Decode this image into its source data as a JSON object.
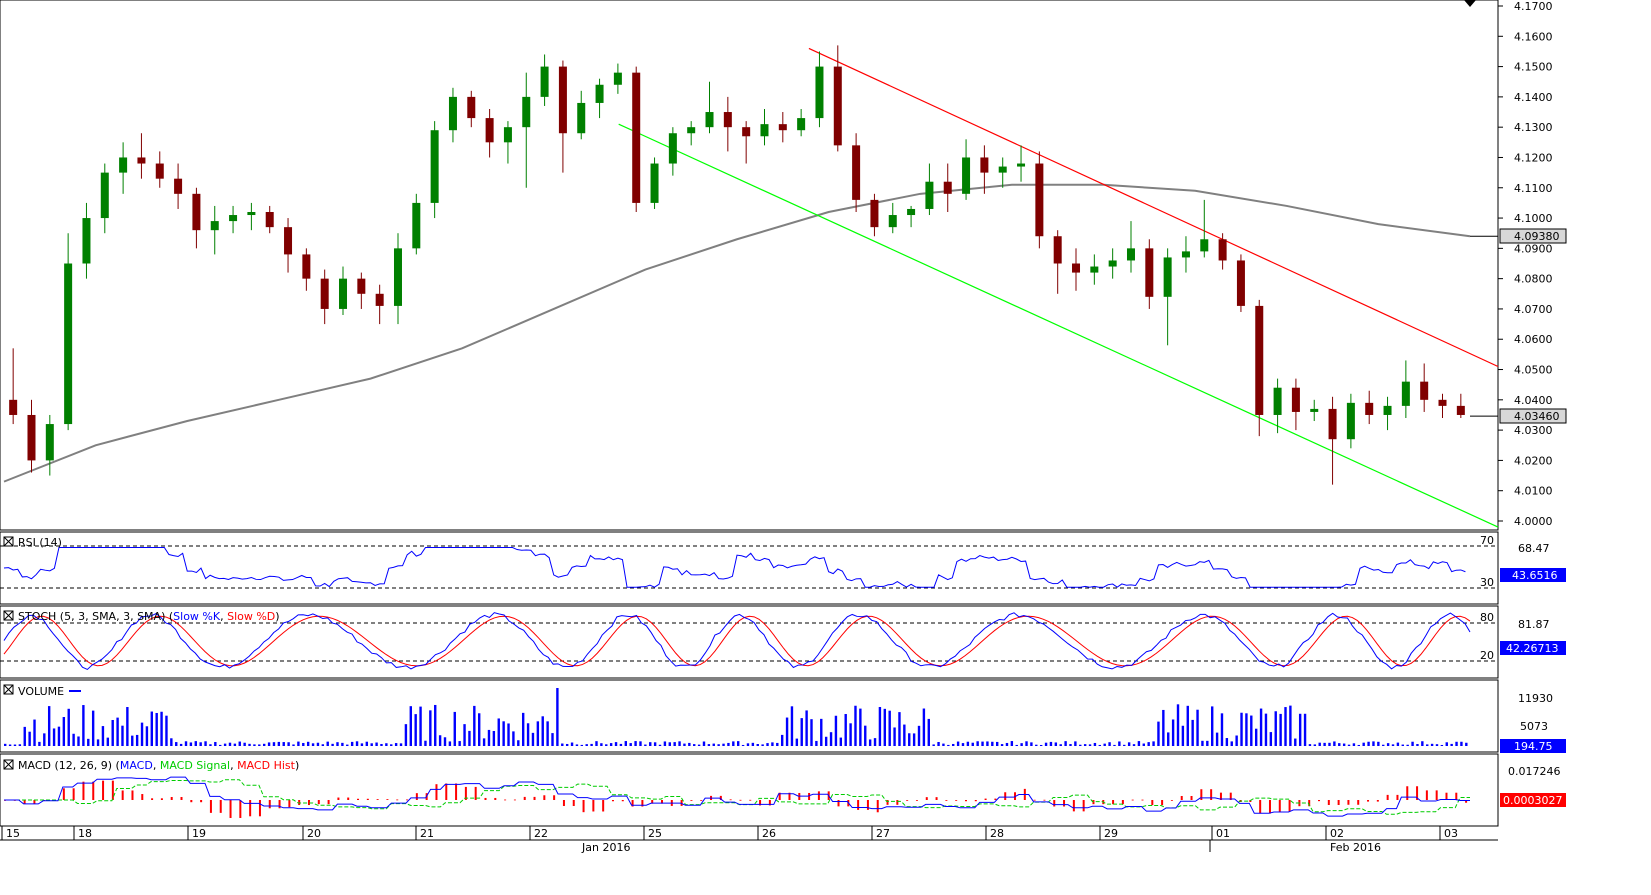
{
  "chart_data": {
    "type": "candlestick",
    "price_panel": {
      "ylim": [
        4.0,
        4.17
      ],
      "y_ticks": [
        "4.1700",
        "4.1600",
        "4.1500",
        "4.1400",
        "4.1300",
        "4.1200",
        "4.1100",
        "4.1000",
        "4.0900",
        "4.0800",
        "4.0700",
        "4.0600",
        "4.0500",
        "4.0400",
        "4.0300",
        "4.0200",
        "4.0100",
        "4.0000"
      ],
      "last_price_label": "4.03460",
      "ma_label": "4.09380",
      "candles_ohlc_approx": [
        [
          4.04,
          4.057,
          4.032,
          4.035
        ],
        [
          4.035,
          4.04,
          4.016,
          4.02
        ],
        [
          4.02,
          4.035,
          4.015,
          4.032
        ],
        [
          4.032,
          4.095,
          4.03,
          4.085
        ],
        [
          4.085,
          4.105,
          4.08,
          4.1
        ],
        [
          4.1,
          4.118,
          4.095,
          4.115
        ],
        [
          4.115,
          4.125,
          4.108,
          4.12
        ],
        [
          4.12,
          4.128,
          4.113,
          4.118
        ],
        [
          4.118,
          4.122,
          4.11,
          4.113
        ],
        [
          4.113,
          4.118,
          4.103,
          4.108
        ],
        [
          4.108,
          4.11,
          4.09,
          4.096
        ],
        [
          4.096,
          4.104,
          4.088,
          4.099
        ],
        [
          4.099,
          4.104,
          4.095,
          4.101
        ],
        [
          4.101,
          4.105,
          4.096,
          4.102
        ],
        [
          4.102,
          4.104,
          4.095,
          4.097
        ],
        [
          4.097,
          4.1,
          4.082,
          4.088
        ],
        [
          4.088,
          4.09,
          4.076,
          4.08
        ],
        [
          4.08,
          4.083,
          4.065,
          4.07
        ],
        [
          4.07,
          4.084,
          4.068,
          4.08
        ],
        [
          4.08,
          4.082,
          4.07,
          4.075
        ],
        [
          4.075,
          4.078,
          4.065,
          4.071
        ],
        [
          4.071,
          4.095,
          4.065,
          4.09
        ],
        [
          4.09,
          4.108,
          4.088,
          4.105
        ],
        [
          4.105,
          4.132,
          4.1,
          4.129
        ],
        [
          4.129,
          4.143,
          4.125,
          4.14
        ],
        [
          4.14,
          4.142,
          4.13,
          4.133
        ],
        [
          4.133,
          4.136,
          4.12,
          4.125
        ],
        [
          4.125,
          4.132,
          4.118,
          4.13
        ],
        [
          4.13,
          4.148,
          4.11,
          4.14
        ],
        [
          4.14,
          4.154,
          4.137,
          4.15
        ],
        [
          4.15,
          4.152,
          4.115,
          4.128
        ],
        [
          4.128,
          4.142,
          4.126,
          4.138
        ],
        [
          4.138,
          4.146,
          4.133,
          4.144
        ],
        [
          4.144,
          4.151,
          4.141,
          4.148
        ],
        [
          4.148,
          4.15,
          4.102,
          4.105
        ],
        [
          4.105,
          4.12,
          4.103,
          4.118
        ],
        [
          4.118,
          4.13,
          4.114,
          4.128
        ],
        [
          4.128,
          4.132,
          4.124,
          4.13
        ],
        [
          4.13,
          4.145,
          4.128,
          4.135
        ],
        [
          4.135,
          4.14,
          4.122,
          4.13
        ],
        [
          4.13,
          4.132,
          4.118,
          4.127
        ],
        [
          4.127,
          4.136,
          4.124,
          4.131
        ],
        [
          4.131,
          4.135,
          4.125,
          4.129
        ],
        [
          4.129,
          4.136,
          4.127,
          4.133
        ],
        [
          4.133,
          4.155,
          4.13,
          4.15
        ],
        [
          4.15,
          4.157,
          4.122,
          4.124
        ],
        [
          4.124,
          4.128,
          4.102,
          4.106
        ],
        [
          4.106,
          4.108,
          4.094,
          4.097
        ],
        [
          4.097,
          4.105,
          4.095,
          4.101
        ],
        [
          4.101,
          4.104,
          4.097,
          4.103
        ],
        [
          4.103,
          4.118,
          4.101,
          4.112
        ],
        [
          4.112,
          4.118,
          4.102,
          4.108
        ],
        [
          4.108,
          4.126,
          4.106,
          4.12
        ],
        [
          4.12,
          4.124,
          4.108,
          4.115
        ],
        [
          4.115,
          4.12,
          4.11,
          4.117
        ],
        [
          4.117,
          4.124,
          4.112,
          4.118
        ],
        [
          4.118,
          4.122,
          4.09,
          4.094
        ],
        [
          4.094,
          4.096,
          4.075,
          4.085
        ],
        [
          4.085,
          4.09,
          4.076,
          4.082
        ],
        [
          4.082,
          4.088,
          4.078,
          4.084
        ],
        [
          4.084,
          4.09,
          4.08,
          4.086
        ],
        [
          4.086,
          4.099,
          4.082,
          4.09
        ],
        [
          4.09,
          4.093,
          4.07,
          4.074
        ],
        [
          4.074,
          4.09,
          4.058,
          4.087
        ],
        [
          4.087,
          4.094,
          4.082,
          4.089
        ],
        [
          4.089,
          4.106,
          4.087,
          4.093
        ],
        [
          4.093,
          4.095,
          4.083,
          4.086
        ],
        [
          4.086,
          4.088,
          4.069,
          4.071
        ],
        [
          4.071,
          4.073,
          4.028,
          4.035
        ],
        [
          4.035,
          4.047,
          4.029,
          4.044
        ],
        [
          4.044,
          4.047,
          4.03,
          4.036
        ],
        [
          4.036,
          4.04,
          4.033,
          4.037
        ],
        [
          4.037,
          4.041,
          4.012,
          4.027
        ],
        [
          4.027,
          4.042,
          4.024,
          4.039
        ],
        [
          4.039,
          4.043,
          4.032,
          4.035
        ],
        [
          4.035,
          4.041,
          4.03,
          4.038
        ],
        [
          4.038,
          4.053,
          4.034,
          4.046
        ],
        [
          4.046,
          4.052,
          4.036,
          4.04
        ],
        [
          4.04,
          4.042,
          4.034,
          4.038
        ],
        [
          4.038,
          4.042,
          4.034,
          4.035
        ]
      ],
      "ma_approx": [
        4.013,
        4.025,
        4.033,
        4.04,
        4.047,
        4.057,
        4.07,
        4.083,
        4.093,
        4.102,
        4.108,
        4.111,
        4.111,
        4.109,
        4.104,
        4.098,
        4.094
      ],
      "channel_upper": [
        [
          0.54,
          4.156
        ],
        [
          1.0,
          4.051
        ]
      ],
      "channel_lower": [
        [
          0.413,
          4.131
        ],
        [
          1.0,
          3.998
        ]
      ]
    },
    "rsi_panel": {
      "title": "RSI (14)",
      "levels": [
        "70",
        "30"
      ],
      "value_label": "68.47",
      "current_label": "43.6516"
    },
    "stoch_panel": {
      "title": "STOCH (5, 3, SMA, 3, SMA)",
      "legend": [
        "Slow %K",
        "Slow %D"
      ],
      "levels": [
        "80",
        "20"
      ],
      "value_label": "81.87",
      "current_label": "42.26713"
    },
    "volume_panel": {
      "title": "VOLUME",
      "value_labels": [
        "11930",
        "5073"
      ],
      "current_label": "194.75"
    },
    "macd_panel": {
      "title": "MACD (12, 26, 9)",
      "legend": [
        "MACD",
        "MACD Signal",
        "MACD Hist"
      ],
      "value_label": "0.017246",
      "current_label": "0.0003027"
    },
    "x_axis": {
      "day_labels": [
        "15",
        "18",
        "19",
        "20",
        "21",
        "22",
        "25",
        "26",
        "27",
        "28",
        "29",
        "01",
        "02",
        "03"
      ],
      "month_labels": [
        "Jan 2016",
        "Feb 2016"
      ]
    }
  },
  "colors": {
    "bull_candle": "#008000",
    "bear_candle": "#800000",
    "ma_line": "#808080",
    "channel_upper": "#ff0000",
    "channel_lower": "#00ff00",
    "rsi": "#0000ff",
    "stoch_k": "#0000ff",
    "stoch_d": "#ff0000",
    "volume": "#0000ff",
    "macd": "#0000ff",
    "macd_signal": "#00cc00",
    "macd_hist": "#ff0000",
    "current_box": "#0000ff"
  },
  "icons": {
    "panel_toggle": "close-box-icon",
    "top_marker": "triangle-down-icon"
  }
}
